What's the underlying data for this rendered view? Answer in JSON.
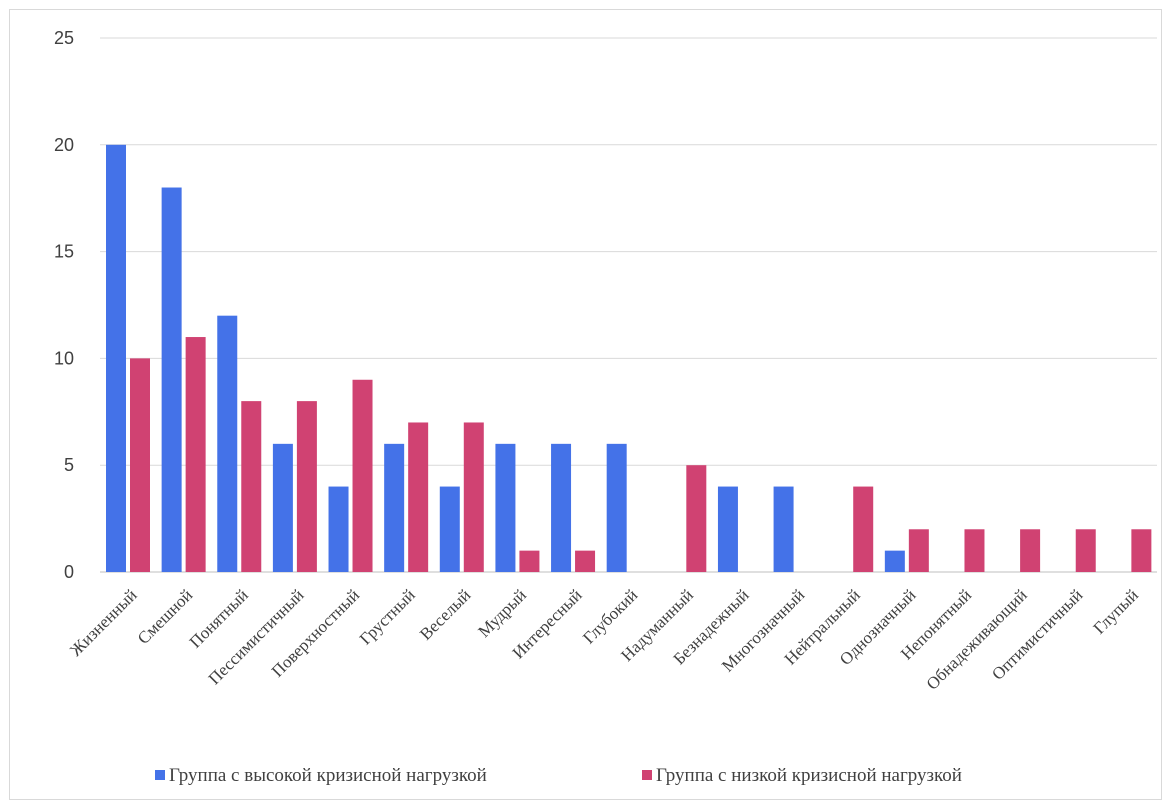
{
  "chart_data": {
    "type": "bar",
    "categories": [
      "Жизненный",
      "Смешной",
      "Понятный",
      "Пессимистичный",
      "Поверхностный",
      "Грустный",
      "Веселый",
      "Мудрый",
      "Интересный",
      "Глубокий",
      "Надуманный",
      "Безнадежный",
      "Многозначный",
      "Нейтральный",
      "Однозначный",
      "Непонятный",
      "Обнадеживающий",
      "Оптимистичный",
      "Глупый"
    ],
    "series": [
      {
        "name": "Группа с высокой кризисной нагрузкой",
        "color": "#4472e8",
        "values": [
          20,
          18,
          12,
          6,
          4,
          6,
          4,
          6,
          6,
          6,
          0,
          4,
          4,
          0,
          1,
          0,
          0,
          0,
          0
        ]
      },
      {
        "name": "Группа с низкой кризисной нагрузкой",
        "color": "#d04272",
        "values": [
          10,
          11,
          8,
          8,
          9,
          7,
          7,
          1,
          1,
          0,
          5,
          0,
          0,
          4,
          2,
          2,
          2,
          2,
          2
        ]
      }
    ],
    "ylim": [
      0,
      25
    ],
    "yticks": [
      0,
      5,
      10,
      15,
      20,
      25
    ],
    "grid": true,
    "legend_position": "bottom"
  }
}
